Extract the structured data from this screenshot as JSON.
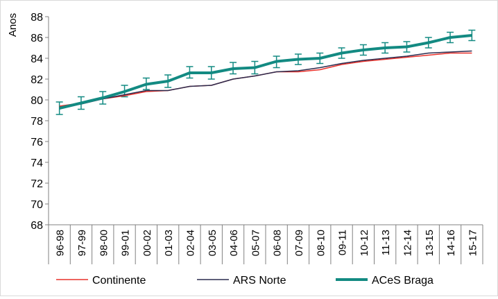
{
  "chart_data": {
    "type": "line",
    "ylabel": "Anos",
    "ylim": [
      68,
      88
    ],
    "yticks": [
      68,
      70,
      72,
      74,
      76,
      78,
      80,
      82,
      84,
      86,
      88
    ],
    "grid": false,
    "legend_position": "bottom",
    "categories": [
      "96-98",
      "97-99",
      "98-00",
      "99-01",
      "00-02",
      "01-03",
      "02-04",
      "03-05",
      "04-06",
      "05-07",
      "06-08",
      "07-09",
      "08-10",
      "09-11",
      "10-12",
      "11-13",
      "12-14",
      "13-15",
      "14-16",
      "15-17"
    ],
    "series": [
      {
        "name": "Continente",
        "color": "#e8302a",
        "values": [
          79.4,
          79.7,
          80.1,
          80.4,
          80.8,
          80.9,
          81.3,
          81.4,
          82.0,
          82.3,
          82.7,
          82.7,
          82.9,
          83.4,
          83.7,
          83.9,
          84.1,
          84.3,
          84.5,
          84.5
        ]
      },
      {
        "name": "ARS Norte",
        "color": "#2a2b4e",
        "values": [
          79.3,
          79.6,
          80.1,
          80.5,
          80.9,
          80.9,
          81.3,
          81.4,
          82.0,
          82.3,
          82.7,
          82.8,
          83.1,
          83.5,
          83.8,
          84.0,
          84.2,
          84.5,
          84.6,
          84.7
        ]
      },
      {
        "name": "ACeS Braga",
        "color": "#138a82",
        "values": [
          79.2,
          79.7,
          80.2,
          80.8,
          81.5,
          81.8,
          82.6,
          82.6,
          83.0,
          83.1,
          83.7,
          83.9,
          84.0,
          84.5,
          84.8,
          85.0,
          85.1,
          85.5,
          86.0,
          86.2
        ],
        "error_lower": [
          78.6,
          79.1,
          79.6,
          80.3,
          81.0,
          81.2,
          82.1,
          82.0,
          82.5,
          82.5,
          83.1,
          83.4,
          83.5,
          84.0,
          84.3,
          84.5,
          84.6,
          85.0,
          85.5,
          85.7
        ],
        "error_upper": [
          79.8,
          80.3,
          80.8,
          81.4,
          82.1,
          82.4,
          83.2,
          83.2,
          83.6,
          83.7,
          84.2,
          84.4,
          84.5,
          85.0,
          85.3,
          85.5,
          85.6,
          86.0,
          86.5,
          86.7
        ]
      }
    ]
  }
}
